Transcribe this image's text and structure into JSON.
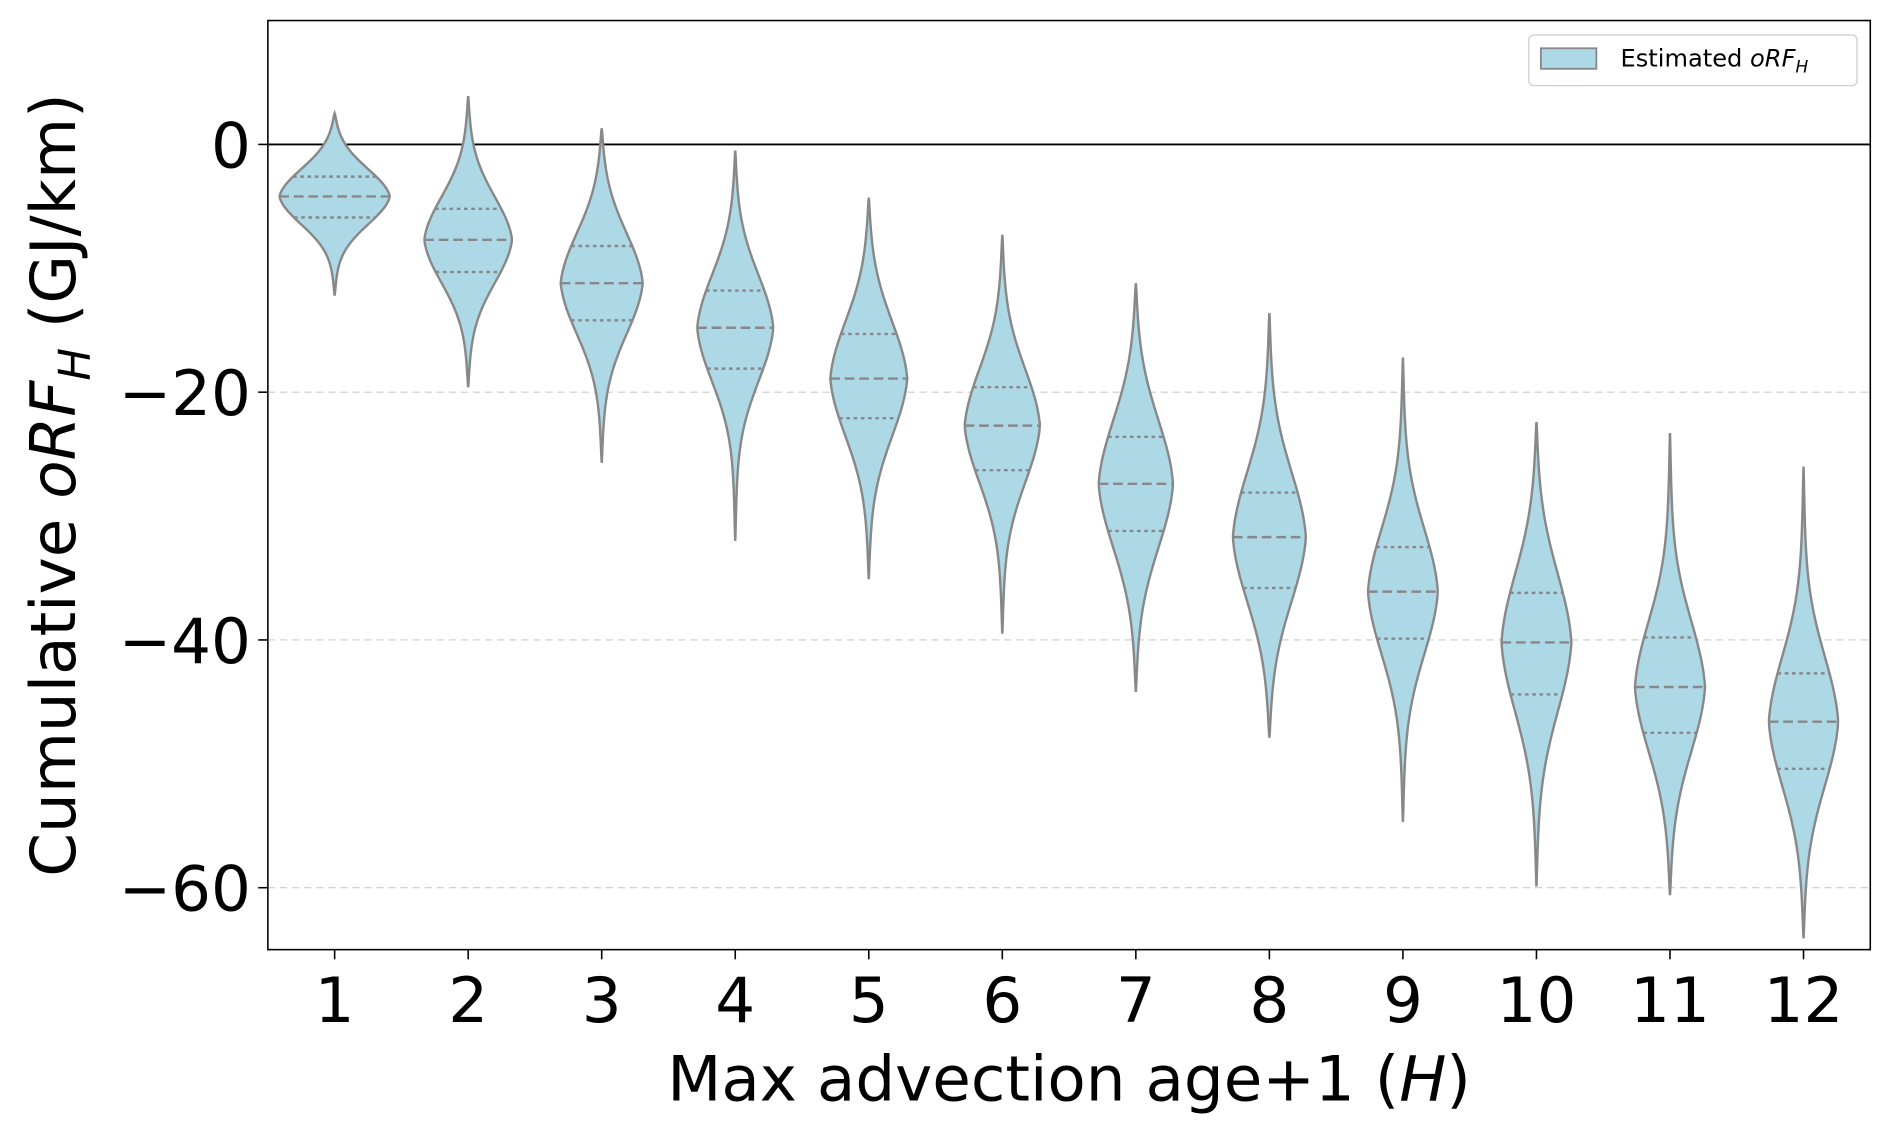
{
  "chart_data": {
    "type": "violin",
    "x_label": {
      "text": "Max advection age+1 (",
      "italic": "H",
      "end": ")"
    },
    "y_label": {
      "text": "Cumulative ",
      "italic": "oRF",
      "subscript": "H",
      "end": " (GJ/km)"
    },
    "legend_label": {
      "text": "Estimated ",
      "italic": "oRF",
      "subscript": "H"
    },
    "legend_position": "upper right",
    "categories": [
      "1",
      "2",
      "3",
      "4",
      "5",
      "6",
      "7",
      "8",
      "9",
      "10",
      "11",
      "12"
    ],
    "series": [
      {
        "color": "#add8e6",
        "edgecolor": "#888888",
        "max": [
          2.5,
          3.9,
          1.3,
          -0.5,
          -4.3,
          -7.3,
          -11.2,
          -13.6,
          -17.2,
          -22.4,
          -23.3,
          -26.0
        ],
        "q3": [
          -2.6,
          -5.2,
          -8.2,
          -11.8,
          -15.3,
          -19.6,
          -23.6,
          -28.1,
          -32.5,
          -36.2,
          -39.8,
          -42.7
        ],
        "median": [
          -4.2,
          -7.7,
          -11.2,
          -14.8,
          -18.9,
          -22.7,
          -27.4,
          -31.7,
          -36.1,
          -40.2,
          -43.8,
          -46.6
        ],
        "q1": [
          -5.9,
          -10.3,
          -14.2,
          -18.1,
          -22.1,
          -26.3,
          -31.2,
          -35.8,
          -39.9,
          -44.4,
          -47.5,
          -50.4
        ],
        "min": [
          -12.2,
          -19.6,
          -25.7,
          -32.0,
          -35.1,
          -39.5,
          -44.2,
          -47.9,
          -54.7,
          -59.9,
          -60.6,
          -64.1
        ]
      }
    ],
    "ylim": [
      -65,
      10
    ],
    "yticks": [
      {
        "value": -60,
        "label": "−60"
      },
      {
        "value": -40,
        "label": "−40"
      },
      {
        "value": -20,
        "label": "−20"
      },
      0
    ],
    "grid": true,
    "reference_line": 0
  }
}
